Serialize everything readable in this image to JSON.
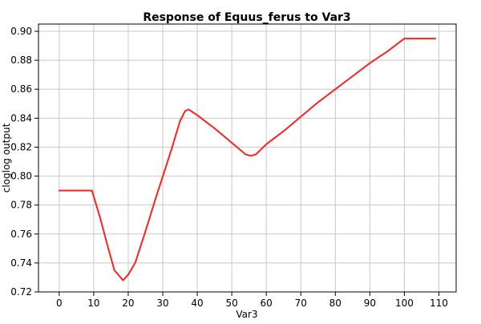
{
  "chart_data": {
    "type": "line",
    "title": "Response of Equus_ferus to Var3",
    "xlabel": "Var3",
    "ylabel": "cloglog output",
    "xlim": [
      -6,
      115
    ],
    "ylim": [
      0.72,
      0.905
    ],
    "x_ticks": [
      0,
      10,
      20,
      30,
      40,
      50,
      60,
      70,
      80,
      90,
      100,
      110
    ],
    "y_ticks": [
      0.72,
      0.74,
      0.76,
      0.78,
      0.8,
      0.82,
      0.84,
      0.86,
      0.88,
      0.9
    ],
    "x_tick_labels": [
      "0",
      "10",
      "20",
      "30",
      "40",
      "50",
      "60",
      "70",
      "80",
      "90",
      "100",
      "110"
    ],
    "y_tick_labels": [
      "0.72",
      "0.74",
      "0.76",
      "0.78",
      "0.80",
      "0.82",
      "0.84",
      "0.86",
      "0.88",
      "0.90"
    ],
    "grid": true,
    "line_color": "#ff2020",
    "series": [
      {
        "x": [
          0,
          9.5,
          12,
          14,
          16,
          18.5,
          20,
          22,
          25,
          28,
          31,
          33,
          35,
          36.5,
          37.5,
          40,
          45,
          50,
          54,
          55.5,
          57,
          60,
          65,
          70,
          75,
          80,
          85,
          90,
          95,
          100,
          104,
          109
        ],
        "values": [
          0.79,
          0.79,
          0.77,
          0.752,
          0.735,
          0.728,
          0.732,
          0.74,
          0.762,
          0.785,
          0.807,
          0.822,
          0.838,
          0.845,
          0.846,
          0.842,
          0.833,
          0.823,
          0.815,
          0.814,
          0.815,
          0.822,
          0.831,
          0.841,
          0.851,
          0.86,
          0.869,
          0.878,
          0.886,
          0.895,
          0.895,
          0.895
        ]
      }
    ]
  }
}
